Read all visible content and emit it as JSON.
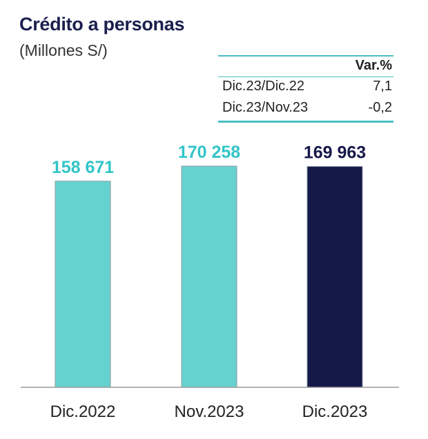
{
  "title": "Crédito a personas",
  "subtitle": "(Millones S/)",
  "variation_table": {
    "header": "Var.%",
    "rows": [
      {
        "label": "Dic.23/Dic.22",
        "value": "7,1"
      },
      {
        "label": "Dic.23/Nov.23",
        "value": "-0,2"
      }
    ]
  },
  "chart_data": {
    "type": "bar",
    "title": "Crédito a personas",
    "ylabel": "Millones S/",
    "categories": [
      "Dic.2022",
      "Nov.2023",
      "Dic.2023"
    ],
    "values": [
      158671,
      170258,
      169963
    ],
    "value_labels": [
      "158 671",
      "170 258",
      "169 963"
    ],
    "ylim": [
      0,
      170258
    ],
    "colors": [
      "#66d2cf",
      "#66d2cf",
      "#151948"
    ],
    "label_colors": [
      "#32c4c8",
      "#32c4c8",
      "#151948"
    ]
  }
}
